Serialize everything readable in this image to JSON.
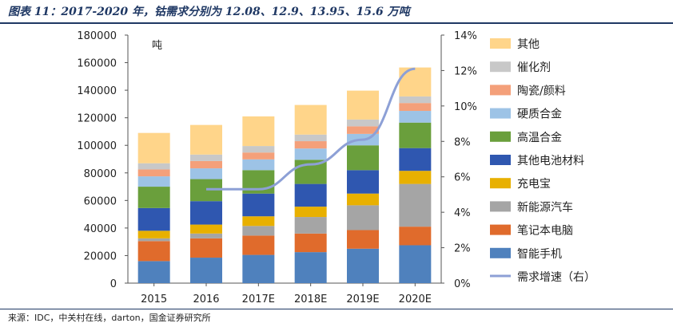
{
  "title": "图表 11：2017-2020 年，钴需求分别为 12.08、12.9、13.95、15.6 万吨",
  "source": "来源：IDC，中关村在线，darton，国金证券研究所",
  "colors": {
    "title": "#1f3864",
    "智能手机": "#4f81bd",
    "笔记本电脑": "#e06b2c",
    "新能源汽车": "#a5a5a5",
    "充电宝": "#e8b000",
    "其他电池材料": "#2f57b0",
    "高温合金": "#6a9f3c",
    "硬质合金": "#9dc3e6",
    "陶瓷/颜料": "#f4a07a",
    "催化剂": "#c8c8c8",
    "其他": "#ffd58a",
    "需求增速（右）": "#8da0d6"
  },
  "chart_data": {
    "type": "bar",
    "stacked": true,
    "categories": [
      "2015",
      "2016",
      "2017E",
      "2018E",
      "2019E",
      "2020E"
    ],
    "y_unit_label": "吨",
    "ylim": [
      0,
      180000
    ],
    "yticks": [
      "0",
      "20000",
      "40000",
      "60000",
      "80000",
      "100000",
      "120000",
      "140000",
      "160000",
      "180000"
    ],
    "y2lim": [
      0,
      14
    ],
    "y2ticks": [
      "0%",
      "2%",
      "4%",
      "6%",
      "8%",
      "10%",
      "12%",
      "14%"
    ],
    "series": [
      {
        "name": "智能手机",
        "values": [
          16000,
          18500,
          20500,
          22500,
          25000,
          27500
        ]
      },
      {
        "name": "笔记本电脑",
        "values": [
          14500,
          14000,
          14000,
          13500,
          13500,
          13500
        ]
      },
      {
        "name": "新能源汽车",
        "values": [
          2000,
          3500,
          7000,
          12000,
          18000,
          31000
        ]
      },
      {
        "name": "充电宝",
        "values": [
          5500,
          6500,
          7000,
          7500,
          8500,
          9500
        ]
      },
      {
        "name": "其他电池材料",
        "values": [
          16500,
          17000,
          16500,
          16500,
          17000,
          16500
        ]
      },
      {
        "name": "高温合金",
        "values": [
          15500,
          16000,
          17000,
          17500,
          18000,
          18500
        ]
      },
      {
        "name": "硬质合金",
        "values": [
          7500,
          7800,
          7800,
          8200,
          8300,
          8500
        ]
      },
      {
        "name": "陶瓷/颜料",
        "values": [
          5000,
          5300,
          5000,
          5300,
          5500,
          5700
        ]
      },
      {
        "name": "催化剂",
        "values": [
          4500,
          4700,
          4700,
          4800,
          4900,
          4800
        ]
      },
      {
        "name": "其他",
        "values": [
          22000,
          21500,
          21500,
          21500,
          21000,
          21000
        ]
      }
    ],
    "line": {
      "name": "需求增速（右）",
      "values": [
        null,
        5.3,
        5.3,
        6.7,
        8.1,
        12.1
      ]
    },
    "legend_placement": "right",
    "grid": false
  }
}
